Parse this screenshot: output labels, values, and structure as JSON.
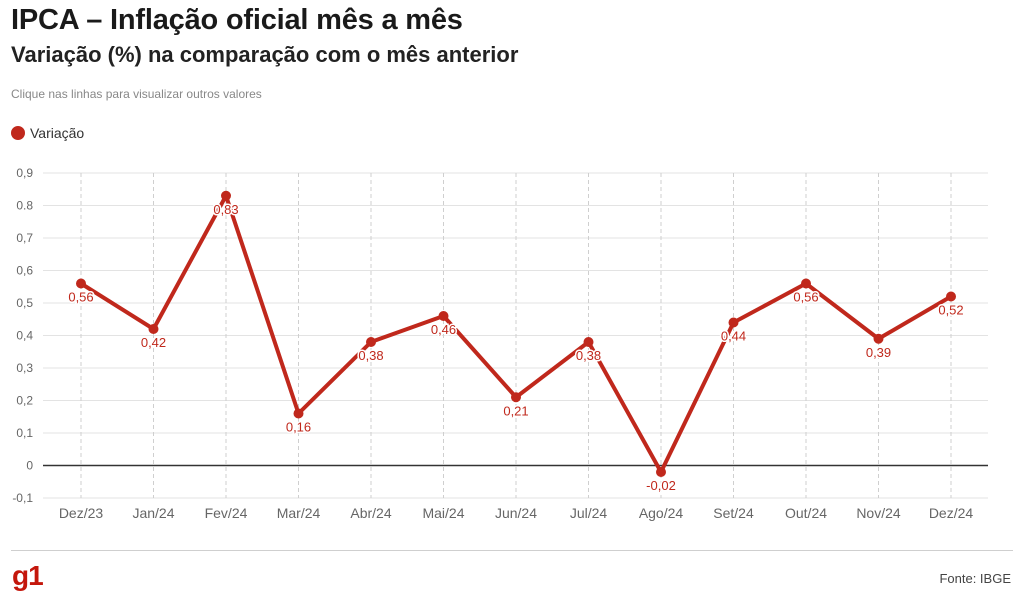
{
  "header": {
    "title": "IPCA – Inflação oficial mês a mês",
    "subtitle": "Variação (%) na comparação com o mês anterior",
    "note": "Clique nas linhas para visualizar outros valores"
  },
  "legend": {
    "label": "Variação",
    "color": "#c0281c"
  },
  "footer": {
    "logo": "g1",
    "source": "Fonte: IBGE"
  },
  "chart_data": {
    "type": "line",
    "categories": [
      "Dez/23",
      "Jan/24",
      "Fev/24",
      "Mar/24",
      "Abr/24",
      "Mai/24",
      "Jun/24",
      "Jul/24",
      "Ago/24",
      "Set/24",
      "Out/24",
      "Nov/24",
      "Dez/24"
    ],
    "series": [
      {
        "name": "Variação",
        "color": "#c0281c",
        "values": [
          0.56,
          0.42,
          0.83,
          0.16,
          0.38,
          0.46,
          0.21,
          0.38,
          -0.02,
          0.44,
          0.56,
          0.39,
          0.52
        ],
        "labels": [
          "0,56",
          "0,42",
          "0,83",
          "0,16",
          "0,38",
          "0,46",
          "0,21",
          "0,38",
          "-0,02",
          "0,44",
          "0,56",
          "0,39",
          "0,52"
        ]
      }
    ],
    "yticks": [
      "-0,1",
      "0",
      "0,1",
      "0,2",
      "0,3",
      "0,4",
      "0,5",
      "0,6",
      "0,7",
      "0.8",
      "0,9"
    ],
    "ylim": [
      -0.1,
      0.9
    ],
    "grid": true,
    "legend_position": "top-left"
  }
}
